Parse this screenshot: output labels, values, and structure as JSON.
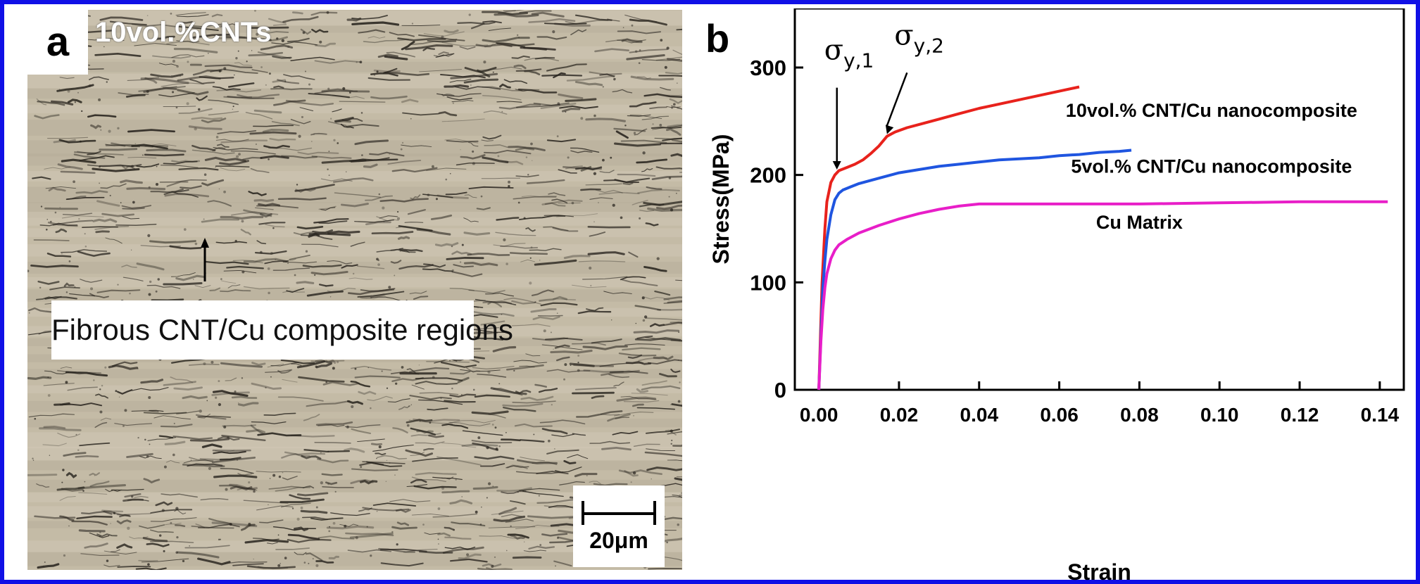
{
  "panel_a": {
    "letter": "a",
    "sample_label": "10vol.%CNTs",
    "annotation": "Fibrous CNT/Cu composite regions",
    "scale_bar_label": "20μm"
  },
  "colors": {
    "frame": "#1010e6",
    "micro_background": "#c4bba6",
    "fiber": "#2a2620"
  },
  "chart_data": {
    "type": "line",
    "panel_letter": "b",
    "title": "",
    "xlabel": "Strain",
    "ylabel": "Stress(MPa)",
    "xlim": [
      -0.006,
      0.146
    ],
    "ylim": [
      0,
      355
    ],
    "xticks": [
      0.0,
      0.02,
      0.04,
      0.06,
      0.08,
      0.1,
      0.12,
      0.14
    ],
    "xtick_labels": [
      "0.00",
      "0.02",
      "0.04",
      "0.06",
      "0.08",
      "0.10",
      "0.12",
      "0.14"
    ],
    "yticks": [
      0,
      100,
      200,
      300
    ],
    "ytick_labels": [
      "0",
      "100",
      "200",
      "300"
    ],
    "grid": false,
    "legend": "none",
    "series": [
      {
        "name": "10vol.% CNT/Cu nanocomposite",
        "color": "#e8221c",
        "x": [
          0.0,
          0.0008,
          0.0015,
          0.002,
          0.003,
          0.004,
          0.005,
          0.007,
          0.009,
          0.011,
          0.013,
          0.015,
          0.017,
          0.019,
          0.022,
          0.026,
          0.03,
          0.035,
          0.04,
          0.045,
          0.05,
          0.055,
          0.06,
          0.065
        ],
        "values": [
          0,
          100,
          150,
          175,
          193,
          200,
          204,
          207,
          210,
          214,
          220,
          227,
          236,
          240,
          244,
          248,
          252,
          257,
          262,
          266,
          270,
          274,
          278,
          282
        ]
      },
      {
        "name": "5vol.% CNT/Cu nanocomposite",
        "color": "#1f55e0",
        "x": [
          0.0,
          0.0006,
          0.001,
          0.0015,
          0.002,
          0.003,
          0.004,
          0.005,
          0.006,
          0.008,
          0.01,
          0.013,
          0.016,
          0.02,
          0.025,
          0.03,
          0.035,
          0.04,
          0.045,
          0.05,
          0.055,
          0.06,
          0.065,
          0.07,
          0.075,
          0.078
        ],
        "values": [
          0,
          60,
          95,
          120,
          140,
          163,
          177,
          183,
          186,
          189,
          192,
          195,
          198,
          202,
          205,
          208,
          210,
          212,
          214,
          215,
          216,
          218,
          219,
          221,
          222,
          223
        ]
      },
      {
        "name": "Cu Matrix",
        "color": "#e81ec8",
        "x": [
          0.0,
          0.0005,
          0.001,
          0.0015,
          0.002,
          0.003,
          0.004,
          0.005,
          0.007,
          0.01,
          0.015,
          0.02,
          0.025,
          0.03,
          0.035,
          0.04,
          0.06,
          0.08,
          0.1,
          0.12,
          0.142
        ],
        "values": [
          0,
          45,
          75,
          95,
          108,
          122,
          130,
          135,
          140,
          146,
          153,
          159,
          164,
          168,
          171,
          173,
          173,
          173,
          174,
          175,
          175
        ]
      }
    ],
    "annotations": [
      {
        "label_main": "σ",
        "label_sub": "y,1",
        "x": 0.0045,
        "y": 205
      },
      {
        "label_main": "σ",
        "label_sub": "y,2",
        "x": 0.017,
        "y": 238
      }
    ]
  }
}
